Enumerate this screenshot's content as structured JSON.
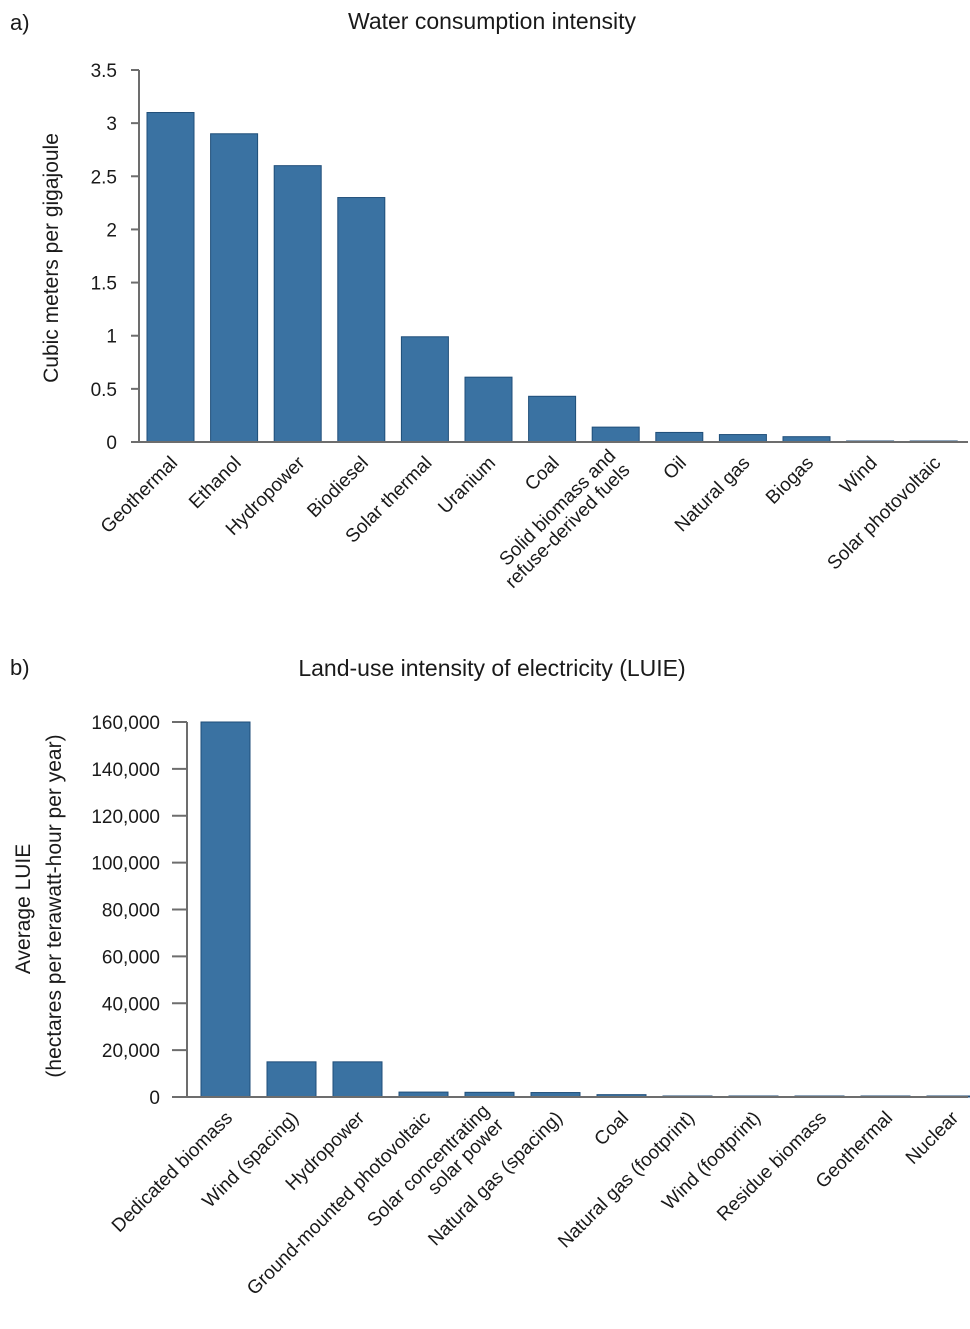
{
  "colors": {
    "bar": "#3a72a2",
    "axis": "#6d6d6d"
  },
  "chart_data": [
    {
      "panel": "a)",
      "type": "bar",
      "title": "Water consumption intensity",
      "xlabel": "",
      "ylabel": "Cubic meters per gigajoule",
      "ylim": [
        0,
        3.5
      ],
      "yticks": [
        "0",
        "0.5",
        "1",
        "1.5",
        "2",
        "2.5",
        "3",
        "3.5"
      ],
      "categories": [
        [
          "Geothermal"
        ],
        [
          "Ethanol"
        ],
        [
          "Hydropower"
        ],
        [
          "Biodiesel"
        ],
        [
          "Solar thermal"
        ],
        [
          "Uranium"
        ],
        [
          "Coal"
        ],
        [
          "Solid biomass and",
          "refuse-derived fuels"
        ],
        [
          "Oil"
        ],
        [
          "Natural gas"
        ],
        [
          "Biogas"
        ],
        [
          "Wind"
        ],
        [
          "Solar photovoltaic"
        ]
      ],
      "values": [
        3.1,
        2.9,
        2.6,
        2.3,
        0.99,
        0.61,
        0.43,
        0.14,
        0.09,
        0.07,
        0.05,
        0.005,
        0.005
      ],
      "grid": false,
      "legend": "none"
    },
    {
      "panel": "b)",
      "type": "bar",
      "title": "Land-use intensity of electricity (LUIE)",
      "xlabel": "",
      "ylabel": [
        "Average LUIE",
        "(hectares per terawatt-hour per year)"
      ],
      "ylim": [
        0,
        160000
      ],
      "yticks": [
        "0",
        "20,000",
        "40,000",
        "60,000",
        "80,000",
        "100,000",
        "120,000",
        "140,000",
        "160,000"
      ],
      "categories": [
        [
          "Dedicated biomass"
        ],
        [
          "Wind (spacing)"
        ],
        [
          "Hydropower"
        ],
        [
          "Ground-mounted photovoltaic"
        ],
        [
          "Solar concentrating",
          "solar power"
        ],
        [
          "Natural gas (spacing)"
        ],
        [
          "Coal"
        ],
        [
          "Natural gas (footprint)"
        ],
        [
          "Wind (footprint)"
        ],
        [
          "Residue biomass"
        ],
        [
          "Geothermal"
        ],
        [
          "Nuclear"
        ]
      ],
      "values": [
        160000,
        15000,
        15000,
        2100,
        2000,
        1900,
        1000,
        400,
        300,
        200,
        150,
        50
      ],
      "grid": false,
      "legend": "none"
    }
  ]
}
